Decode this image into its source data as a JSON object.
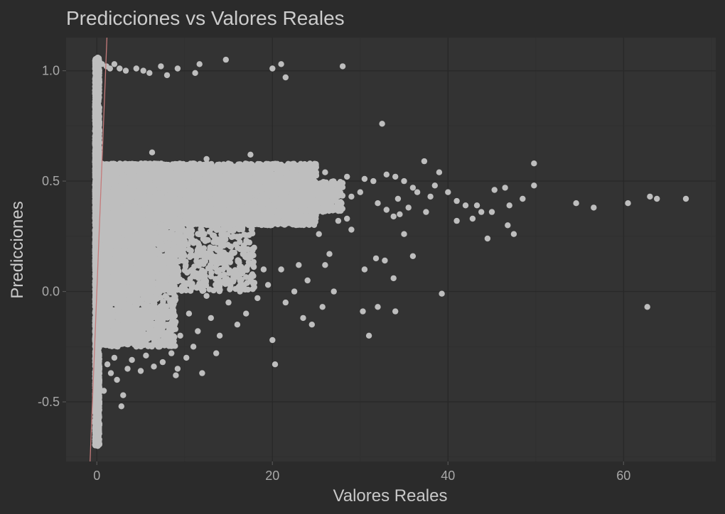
{
  "chart_data": {
    "type": "scatter",
    "title": "Predicciones vs Valores Reales",
    "xlabel": "Valores Reales",
    "ylabel": "Predicciones",
    "xlim": [
      -3.5,
      70.5
    ],
    "ylim": [
      -0.77,
      1.15
    ],
    "x_ticks": [
      0,
      20,
      40,
      60
    ],
    "x_tick_labels": [
      "0",
      "20",
      "40",
      "60"
    ],
    "y_ticks": [
      -0.5,
      0.0,
      0.5,
      1.0
    ],
    "y_tick_labels": [
      "-0.5",
      "0.0",
      "0.5",
      "1.0"
    ],
    "grid": true,
    "legend": "none",
    "colors": {
      "background": "#2b2b2b",
      "panel": "#333333",
      "grid_major": "#292929",
      "grid_minor": "#303030",
      "points": "#bebebe",
      "reference_line": "#c47a7a"
    },
    "reference_line": {
      "label": "y = x",
      "x": [
        -0.77,
        1.15
      ],
      "y": [
        -0.77,
        1.15
      ]
    },
    "note_density": "tens of thousands of overlapping points near x = 0 (predictions -0.7 to 1.05) and a dense band from x = 0 to about 27 with predictions 0.2 to 0.6, widening below toward -0.3 near x = 0 to 10",
    "series": [
      {
        "points": [
          [
            0,
            1.05
          ],
          [
            0.3,
            1.04
          ],
          [
            0.6,
            1.03
          ],
          [
            1.1,
            1.02
          ],
          [
            1.5,
            1.01
          ],
          [
            2.0,
            1.03
          ],
          [
            2.6,
            1.01
          ],
          [
            3.3,
            1.0
          ],
          [
            4.5,
            1.01
          ],
          [
            5.3,
            1.0
          ],
          [
            6.0,
            0.99
          ],
          [
            7.3,
            1.02
          ],
          [
            8.0,
            0.98
          ],
          [
            9.2,
            1.01
          ],
          [
            11.2,
            0.99
          ],
          [
            11.7,
            1.03
          ],
          [
            14.7,
            1.05
          ],
          [
            20.0,
            1.01
          ],
          [
            21.0,
            1.03
          ],
          [
            21.5,
            0.97
          ],
          [
            28.0,
            1.02
          ],
          [
            32.5,
            0.76
          ],
          [
            37.3,
            0.59
          ],
          [
            39.0,
            0.54
          ],
          [
            40.0,
            0.45
          ],
          [
            41.0,
            0.41
          ],
          [
            42.0,
            0.39
          ],
          [
            43.3,
            0.39
          ],
          [
            43.8,
            0.36
          ],
          [
            44.5,
            0.24
          ],
          [
            45.0,
            0.36
          ],
          [
            45.3,
            0.46
          ],
          [
            46.5,
            0.47
          ],
          [
            47.0,
            0.39
          ],
          [
            48.5,
            0.42
          ],
          [
            49.8,
            0.58
          ],
          [
            49.8,
            0.48
          ],
          [
            47.5,
            0.26
          ],
          [
            46.8,
            0.3
          ],
          [
            42.8,
            0.33
          ],
          [
            41.0,
            0.32
          ],
          [
            54.6,
            0.4
          ],
          [
            56.6,
            0.38
          ],
          [
            60.5,
            0.4
          ],
          [
            63.0,
            0.43
          ],
          [
            63.8,
            0.42
          ],
          [
            67.1,
            0.42
          ],
          [
            62.7,
            -0.07
          ],
          [
            39.3,
            -0.01
          ],
          [
            36.0,
            0.16
          ],
          [
            35.0,
            0.26
          ],
          [
            33.8,
            0.06
          ],
          [
            34.0,
            -0.09
          ],
          [
            32.8,
            0.14
          ],
          [
            32.0,
            -0.07
          ],
          [
            31.0,
            -0.2
          ],
          [
            30.3,
            -0.09
          ],
          [
            30.5,
            0.1
          ],
          [
            31.8,
            0.15
          ],
          [
            29.0,
            0.28
          ],
          [
            28.5,
            0.33
          ],
          [
            27.5,
            0.32
          ],
          [
            27.0,
            0.0
          ],
          [
            26.5,
            0.17
          ],
          [
            26.0,
            0.12
          ],
          [
            25.3,
            0.26
          ],
          [
            25.7,
            -0.07
          ],
          [
            24.5,
            -0.15
          ],
          [
            24.0,
            0.05
          ],
          [
            23.5,
            -0.12
          ],
          [
            23.0,
            0.12
          ],
          [
            22.5,
            0.0
          ],
          [
            21.5,
            -0.05
          ],
          [
            21.0,
            0.1
          ],
          [
            20.3,
            -0.33
          ],
          [
            20.0,
            -0.22
          ],
          [
            19.5,
            0.03
          ],
          [
            19.0,
            0.1
          ],
          [
            18.3,
            -0.03
          ],
          [
            17.5,
            0.06
          ],
          [
            17.0,
            -0.1
          ],
          [
            16.3,
            0.0
          ],
          [
            16.0,
            -0.15
          ],
          [
            15.5,
            0.08
          ],
          [
            15.0,
            -0.05
          ],
          [
            14.0,
            -0.2
          ],
          [
            13.6,
            -0.28
          ],
          [
            13.0,
            -0.12
          ],
          [
            12.5,
            -0.02
          ],
          [
            12.0,
            -0.37
          ],
          [
            11.5,
            -0.18
          ],
          [
            11.0,
            -0.25
          ],
          [
            10.5,
            -0.1
          ],
          [
            10.2,
            -0.3
          ],
          [
            9.5,
            -0.2
          ],
          [
            9.2,
            -0.35
          ],
          [
            9.0,
            -0.38
          ],
          [
            8.5,
            -0.28
          ],
          [
            8.0,
            -0.15
          ],
          [
            7.5,
            -0.32
          ],
          [
            7.0,
            -0.25
          ],
          [
            6.5,
            -0.34
          ],
          [
            6.0,
            -0.2
          ],
          [
            5.6,
            -0.29
          ],
          [
            5.0,
            -0.36
          ],
          [
            4.5,
            -0.25
          ],
          [
            4.0,
            -0.31
          ],
          [
            3.5,
            -0.35
          ],
          [
            3.0,
            -0.47
          ],
          [
            2.8,
            -0.52
          ],
          [
            2.3,
            -0.4
          ],
          [
            2.0,
            -0.3
          ],
          [
            1.6,
            -0.37
          ],
          [
            1.2,
            -0.33
          ],
          [
            0.8,
            -0.45
          ],
          [
            0.1,
            -0.7
          ],
          [
            0.2,
            -0.58
          ],
          [
            0.1,
            -0.65
          ],
          [
            0.3,
            -0.5
          ],
          [
            0.2,
            -0.55
          ],
          [
            6.3,
            0.63
          ],
          [
            12.5,
            0.6
          ],
          [
            17.5,
            0.62
          ],
          [
            11.0,
            0.58
          ],
          [
            14.0,
            0.57
          ],
          [
            19.5,
            0.55
          ],
          [
            22.5,
            0.56
          ],
          [
            24.0,
            0.55
          ],
          [
            26.0,
            0.54
          ],
          [
            28.5,
            0.52
          ],
          [
            30.5,
            0.51
          ],
          [
            31.5,
            0.5
          ],
          [
            33.0,
            0.53
          ],
          [
            34.0,
            0.52
          ],
          [
            35.0,
            0.5
          ],
          [
            36.0,
            0.47
          ],
          [
            36.5,
            0.45
          ],
          [
            38.0,
            0.43
          ],
          [
            35.5,
            0.38
          ],
          [
            34.5,
            0.35
          ],
          [
            33.0,
            0.37
          ],
          [
            32.0,
            0.4
          ],
          [
            30.0,
            0.45
          ],
          [
            29.0,
            0.43
          ],
          [
            33.8,
            0.34
          ],
          [
            34.3,
            0.42
          ],
          [
            37.5,
            0.36
          ],
          [
            38.5,
            0.48
          ]
        ],
        "dense_regions": [
          {
            "x_range": [
              -0.2,
              0.3
            ],
            "y_range": [
              -0.7,
              1.06
            ],
            "count": 2200
          },
          {
            "x_range": [
              0.2,
              25.0
            ],
            "y_range": [
              0.3,
              0.58
            ],
            "count": 6500
          },
          {
            "x_range": [
              0.2,
              9.0
            ],
            "y_range": [
              -0.25,
              0.45
            ],
            "count": 2500
          },
          {
            "x_range": [
              2.0,
              18.0
            ],
            "y_range": [
              0.0,
              0.35
            ],
            "count": 900
          },
          {
            "x_range": [
              18.0,
              28.0
            ],
            "y_range": [
              0.36,
              0.5
            ],
            "count": 700
          }
        ]
      }
    ]
  }
}
